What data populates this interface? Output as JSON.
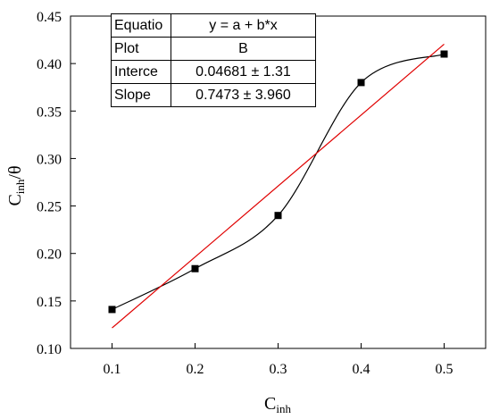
{
  "chart_data": {
    "type": "scatter",
    "xlabel": {
      "base": "C",
      "sub": "inh"
    },
    "ylabel": {
      "base": "C",
      "sub": "inh",
      "suffix": "/θ"
    },
    "xlim": [
      0.05,
      0.55
    ],
    "ylim": [
      0.1,
      0.45
    ],
    "x_ticks": [
      "0.1",
      "0.2",
      "0.3",
      "0.4",
      "0.5"
    ],
    "y_ticks": [
      "0.10",
      "0.15",
      "0.20",
      "0.25",
      "0.30",
      "0.35",
      "0.40",
      "0.45"
    ],
    "grid": false,
    "series": [
      {
        "marker": "square",
        "color": "#000000",
        "x": [
          0.1,
          0.2,
          0.3,
          0.4,
          0.5
        ],
        "y": [
          0.141,
          0.184,
          0.24,
          0.38,
          0.41
        ]
      }
    ],
    "fit_line": {
      "color": "#e00000",
      "intercept": 0.04681,
      "slope": 0.7473,
      "x_range": [
        0.1,
        0.5
      ]
    },
    "smooth_curve_color": "#000000"
  },
  "fit_table": {
    "rows": [
      {
        "key": "Equatio",
        "value": "y = a + b*x"
      },
      {
        "key": "Plot",
        "value": "B"
      },
      {
        "key": "Interce",
        "value": "0.04681 ± 1.31"
      },
      {
        "key": "Slope",
        "value": "0.7473 ± 3.960"
      }
    ]
  }
}
